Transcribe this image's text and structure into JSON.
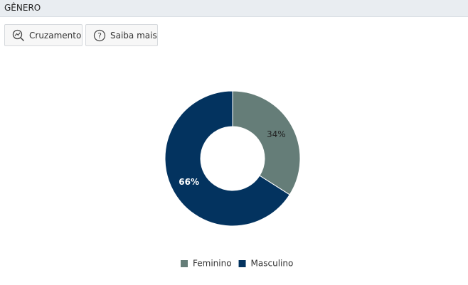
{
  "header": {
    "title": "GÊNERO"
  },
  "buttons": [
    "Cruzamento",
    "Saiba mais"
  ],
  "chart_data": {
    "type": "donut",
    "categories": [
      "Feminino",
      "Masculino"
    ],
    "values": [
      34,
      66
    ],
    "value_labels": [
      "34%",
      "66%"
    ],
    "colors": [
      "#657d78",
      "#03335f"
    ],
    "label_colors": [
      "#222222",
      "#ffffff"
    ],
    "legend": "bottom"
  }
}
